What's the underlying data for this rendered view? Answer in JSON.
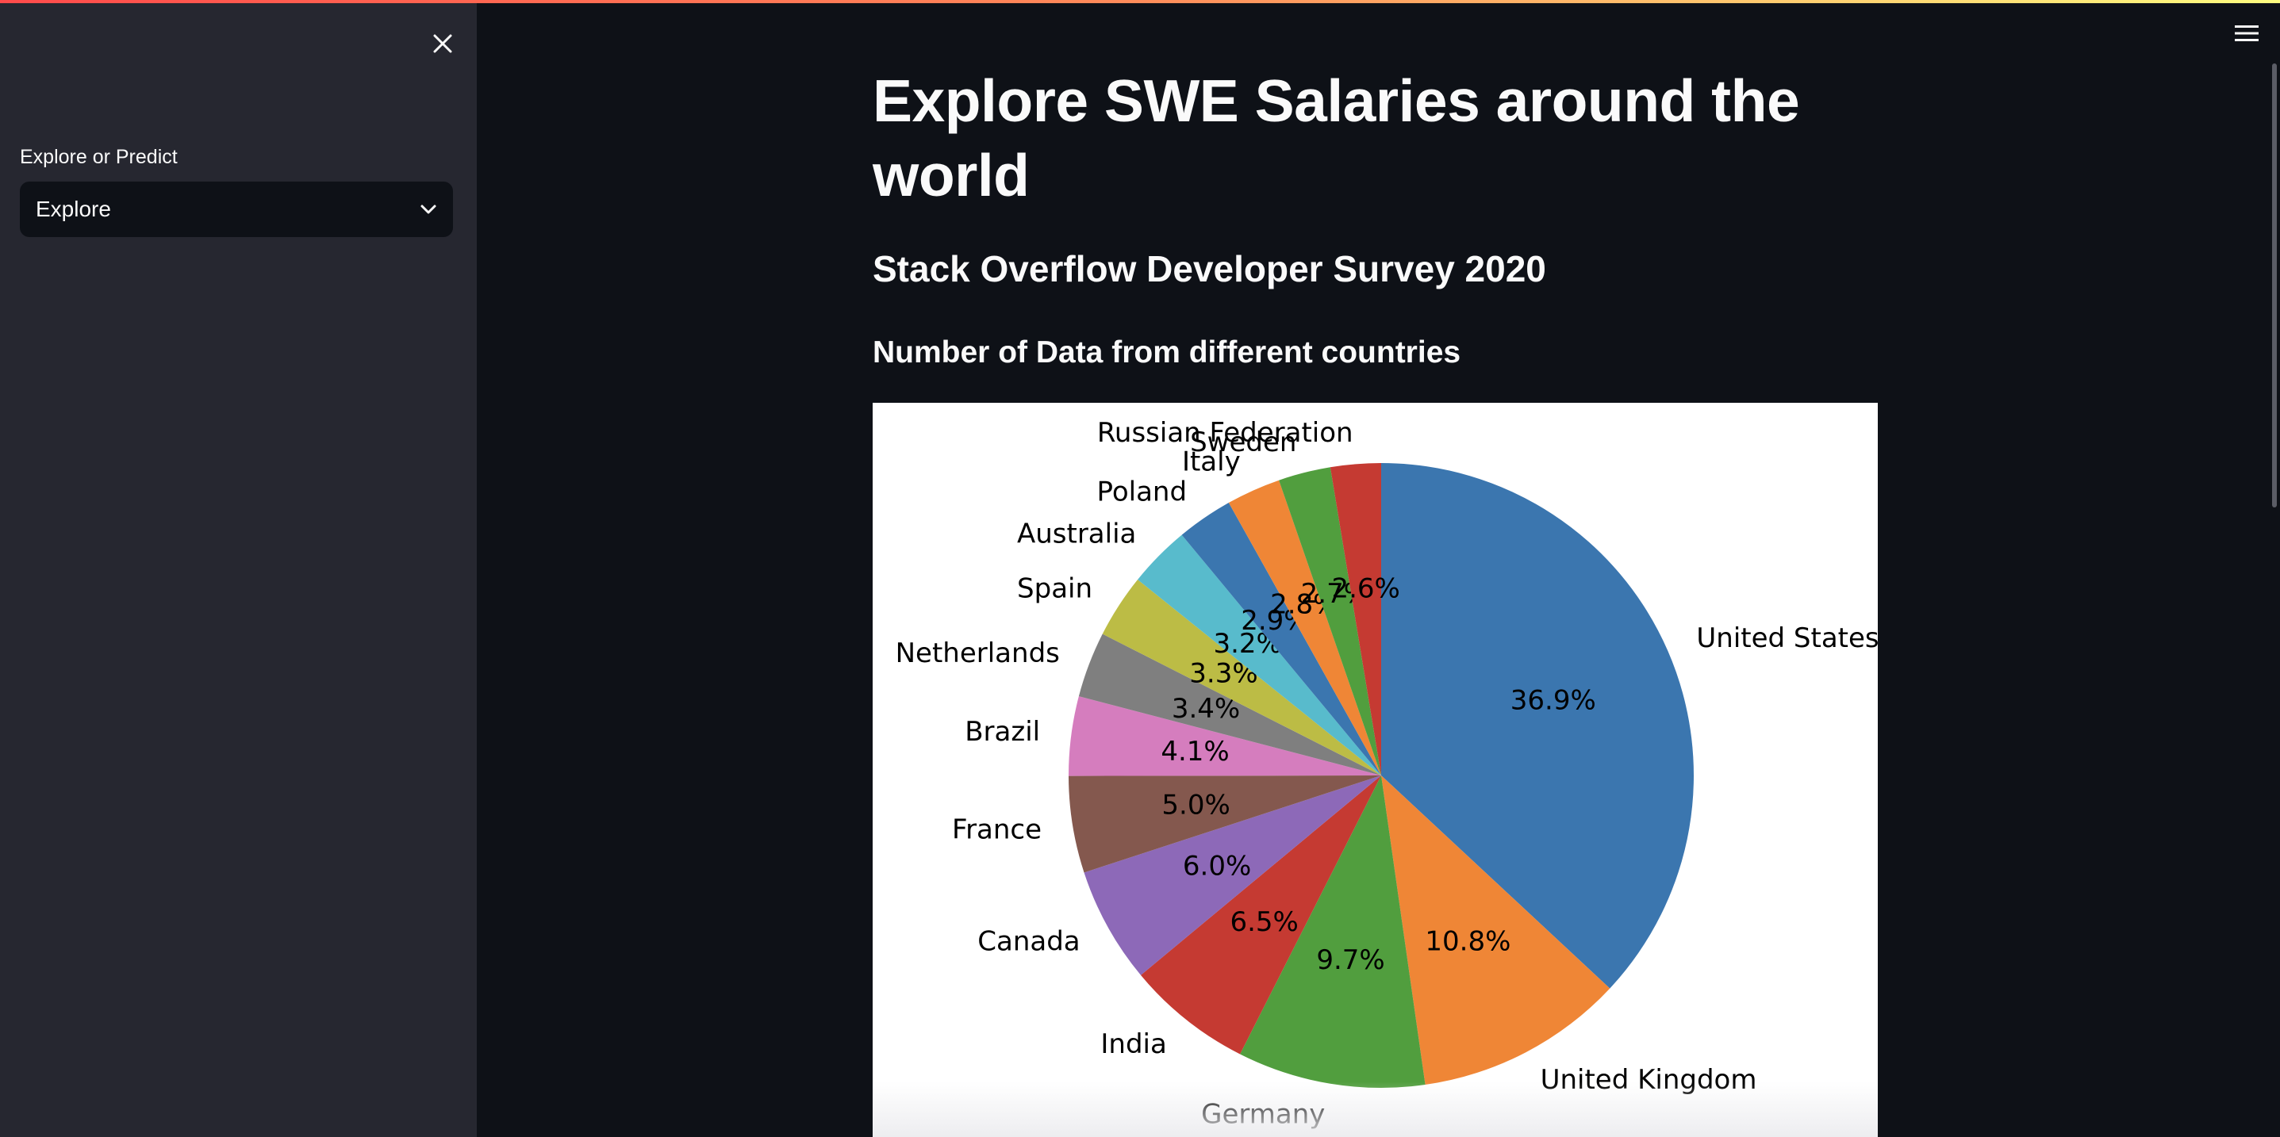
{
  "sidebar": {
    "select_label": "Explore or Predict",
    "select_value": "Explore"
  },
  "main": {
    "title": "Explore SWE Salaries around the world",
    "subtitle": "Stack Overflow Developer Survey 2020",
    "section_heading": "Number of Data from different countries"
  },
  "chart_data": {
    "type": "pie",
    "start_angle_deg": 90,
    "direction": "clockwise",
    "slices": [
      {
        "label": "United States",
        "value": 36.9,
        "pct_label": "36.9%",
        "color": "#3b76af"
      },
      {
        "label": "United Kingdom",
        "value": 10.8,
        "pct_label": "10.8%",
        "color": "#ef8636"
      },
      {
        "label": "Germany",
        "value": 9.7,
        "pct_label": "9.7%",
        "color": "#519e3e"
      },
      {
        "label": "India",
        "value": 6.5,
        "pct_label": "6.5%",
        "color": "#c53a32"
      },
      {
        "label": "Canada",
        "value": 6.0,
        "pct_label": "6.0%",
        "color": "#8d69b8"
      },
      {
        "label": "France",
        "value": 5.0,
        "pct_label": "5.0%",
        "color": "#84584e"
      },
      {
        "label": "Brazil",
        "value": 4.1,
        "pct_label": "4.1%",
        "color": "#d57dbe"
      },
      {
        "label": "Netherlands",
        "value": 3.4,
        "pct_label": "3.4%",
        "color": "#7f7f7f"
      },
      {
        "label": "Spain",
        "value": 3.3,
        "pct_label": "3.3%",
        "color": "#bcbc45"
      },
      {
        "label": "Australia",
        "value": 3.2,
        "pct_label": "3.2%",
        "color": "#58bbcc"
      },
      {
        "label": "Poland",
        "value": 2.9,
        "pct_label": "2.9%",
        "color": "#3b76af"
      },
      {
        "label": "Italy",
        "value": 2.8,
        "pct_label": "2.8%",
        "color": "#ef8636"
      },
      {
        "label": "Sweden",
        "value": 2.7,
        "pct_label": "2.7%",
        "color": "#519e3e"
      },
      {
        "label": "Russian Federation",
        "value": 2.6,
        "pct_label": "2.6%",
        "color": "#c53a32"
      }
    ]
  }
}
